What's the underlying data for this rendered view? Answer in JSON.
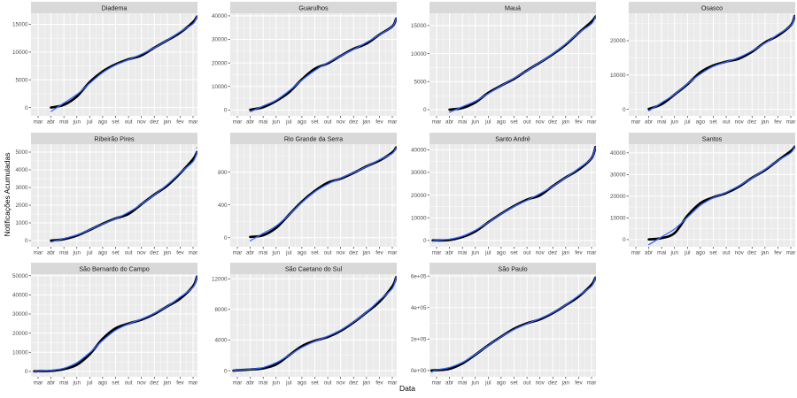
{
  "figure": {
    "ylabel": "Notificações Acumuladas",
    "xlabel": "Data"
  },
  "style": {
    "panel_bg": "#EBEBEB",
    "strip_bg": "#D9D9D9",
    "strip_text_color": "#141414",
    "grid_color": "#FFFFFF",
    "tick_label_color": "#4D4D4D",
    "tick_mark_color": "#333333",
    "point_color": "#000000",
    "smooth_color": "#3366FF",
    "outlier_color": "#9E9E9E"
  },
  "chart_data": {
    "type": "line",
    "xlabel": "Data",
    "ylabel": "Notificações Acumuladas",
    "x_tick_labels": [
      "mar",
      "abr",
      "mai",
      "jun",
      "jul",
      "ago",
      "set",
      "out",
      "nov",
      "dez",
      "jan",
      "fev",
      "mar"
    ],
    "series_note": "black = cumulative notifications (points), blue = smooth fit",
    "facets": [
      {
        "title": "Diadema",
        "ylim": [
          -1500,
          17000
        ],
        "ytick_values": [
          0,
          5000,
          10000,
          15000
        ],
        "ytick_labels": [
          "0",
          "5000",
          "10000",
          "15000"
        ],
        "values": [
          null,
          0,
          500,
          2000,
          4600,
          6500,
          7800,
          8700,
          9400,
          10800,
          12100,
          13500,
          15400
        ],
        "end": [
          12.3,
          16400
        ]
      },
      {
        "title": "Guarulhos",
        "ylim": [
          -2500,
          41100
        ],
        "ytick_values": [
          0,
          10000,
          20000,
          30000,
          40000
        ],
        "ytick_labels": [
          "0",
          "10000",
          "20000",
          "30000",
          "40000"
        ],
        "values": [
          null,
          100,
          1200,
          3800,
          7500,
          13000,
          17500,
          19800,
          23000,
          26000,
          28200,
          32000,
          35500
        ],
        "end": [
          12.3,
          38800
        ]
      },
      {
        "title": "Mauá",
        "ylim": [
          -1100,
          17200
        ],
        "ytick_values": [
          0,
          5000,
          10000,
          15000
        ],
        "ytick_labels": [
          "0",
          "5000",
          "10000",
          "15000"
        ],
        "values": [
          null,
          0,
          300,
          1300,
          3000,
          4300,
          5500,
          7000,
          8400,
          9900,
          11600,
          13700,
          15700
        ],
        "end": [
          12.3,
          16600
        ]
      },
      {
        "title": "Osasco",
        "ylim": [
          -1900,
          28000
        ],
        "ytick_values": [
          0,
          10000,
          20000
        ],
        "ytick_labels": [
          "0",
          "10000",
          "20000"
        ],
        "values": [
          null,
          100,
          1500,
          4300,
          7300,
          10800,
          12800,
          13900,
          14800,
          16800,
          19500,
          21500,
          24500
        ],
        "end": [
          12.3,
          27200
        ]
      },
      {
        "title": "Ribeirão Pires",
        "ylim": [
          -350,
          5450
        ],
        "ytick_values": [
          0,
          1000,
          2000,
          3000,
          4000,
          5000
        ],
        "ytick_labels": [
          "0",
          "1000",
          "2000",
          "3000",
          "4000",
          "5000"
        ],
        "values": [
          null,
          0,
          80,
          280,
          600,
          950,
          1250,
          1500,
          2050,
          2600,
          3100,
          3800,
          4600
        ],
        "end": [
          12.3,
          5000
        ],
        "outlier": [
          12.35,
          5250
        ]
      },
      {
        "title": "Rio Grande da Serra",
        "ylim": [
          -110,
          1140
        ],
        "ytick_values": [
          0,
          400,
          800
        ],
        "ytick_labels": [
          "0",
          "400",
          "800"
        ],
        "values": [
          null,
          10,
          30,
          120,
          280,
          440,
          570,
          670,
          720,
          790,
          870,
          940,
          1040
        ],
        "end": [
          12.3,
          1100
        ]
      },
      {
        "title": "Santo André",
        "ylim": [
          -2800,
          42500
        ],
        "ytick_values": [
          0,
          10000,
          20000,
          30000,
          40000
        ],
        "ytick_labels": [
          "0",
          "10000",
          "20000",
          "30000",
          "40000"
        ],
        "pre": [
          -0.3,
          0
        ],
        "values": [
          0,
          200,
          1500,
          4000,
          8000,
          11800,
          15200,
          18000,
          19900,
          24000,
          27800,
          31300,
          36300
        ],
        "end": [
          12.3,
          41200
        ]
      },
      {
        "title": "Santos",
        "ylim": [
          -3300,
          44000
        ],
        "ytick_values": [
          0,
          10000,
          20000,
          30000,
          40000
        ],
        "ytick_labels": [
          "0",
          "10000",
          "20000",
          "30000",
          "40000"
        ],
        "values": [
          null,
          100,
          700,
          3000,
          11000,
          16800,
          19500,
          21500,
          24500,
          28500,
          32000,
          36500,
          40800
        ],
        "end": [
          12.3,
          42800
        ]
      },
      {
        "title": "São Bernardo do Campo",
        "ylim": [
          -2800,
          50800
        ],
        "ytick_values": [
          0,
          10000,
          20000,
          30000,
          40000,
          50000
        ],
        "ytick_labels": [
          "0",
          "10000",
          "20000",
          "30000",
          "40000",
          "50000"
        ],
        "pre": [
          -0.3,
          0
        ],
        "values": [
          100,
          300,
          1200,
          3500,
          9000,
          17000,
          22500,
          25000,
          27000,
          30000,
          34000,
          38000,
          44500
        ],
        "end": [
          12.3,
          49500
        ]
      },
      {
        "title": "São Caetano do Sul",
        "ylim": [
          -800,
          12600
        ],
        "ytick_values": [
          0,
          4000,
          8000,
          12000
        ],
        "ytick_labels": [
          "0",
          "4000",
          "8000",
          "12000"
        ],
        "pre": [
          -0.3,
          0
        ],
        "values": [
          50,
          150,
          300,
          800,
          2000,
          3200,
          3900,
          4400,
          5200,
          6300,
          7600,
          9000,
          11000
        ],
        "end": [
          12.3,
          12200
        ]
      },
      {
        "title": "São Paulo",
        "ylim": [
          -40000,
          612000
        ],
        "ytick_values": [
          0,
          200000,
          400000,
          600000
        ],
        "ytick_labels": [
          "0e+00",
          "2e+05",
          "4e+05",
          "6e+05"
        ],
        "pre": [
          -0.4,
          0
        ],
        "values": [
          2000,
          10000,
          45000,
          100000,
          160000,
          215000,
          265000,
          300000,
          325000,
          365000,
          415000,
          470000,
          545000
        ],
        "end": [
          12.3,
          590000
        ]
      }
    ]
  }
}
